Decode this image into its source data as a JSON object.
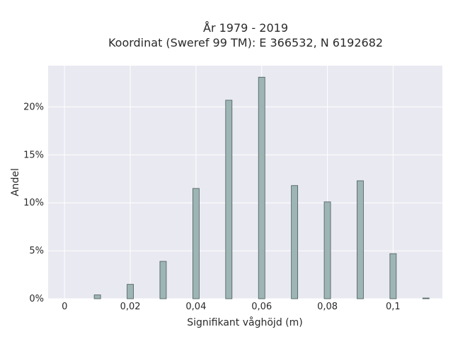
{
  "chart_data": {
    "type": "bar",
    "title_lines": [
      "År 1979 - 2019",
      "Koordinat (Sweref 99 TM): E 366532, N 6192682"
    ],
    "xlabel": "Signifikant våghöjd (m)",
    "ylabel": "Andel",
    "x": [
      0.01,
      0.02,
      0.03,
      0.04,
      0.05,
      0.06,
      0.07,
      0.08,
      0.09,
      0.1,
      0.11
    ],
    "values": [
      0.4,
      1.5,
      3.9,
      11.5,
      20.7,
      23.1,
      11.8,
      10.1,
      12.3,
      4.7,
      0.05
    ],
    "xlim": [
      -0.005,
      0.115
    ],
    "ylim": [
      0,
      24.3
    ],
    "xticks": [
      0,
      0.02,
      0.04,
      0.06,
      0.08,
      0.1
    ],
    "xtick_labels": [
      "0",
      "0,02",
      "0,04",
      "0,06",
      "0,08",
      "0,1"
    ],
    "yticks": [
      0,
      5,
      10,
      15,
      20
    ],
    "ytick_labels": [
      "0%",
      "5%",
      "10%",
      "15%",
      "20%"
    ],
    "grid": true,
    "colors": {
      "bar_fill": "#9db5b4",
      "bar_stroke": "#4a5a5a",
      "plot_bg": "#e9e9f1",
      "grid": "#ffffff"
    }
  }
}
